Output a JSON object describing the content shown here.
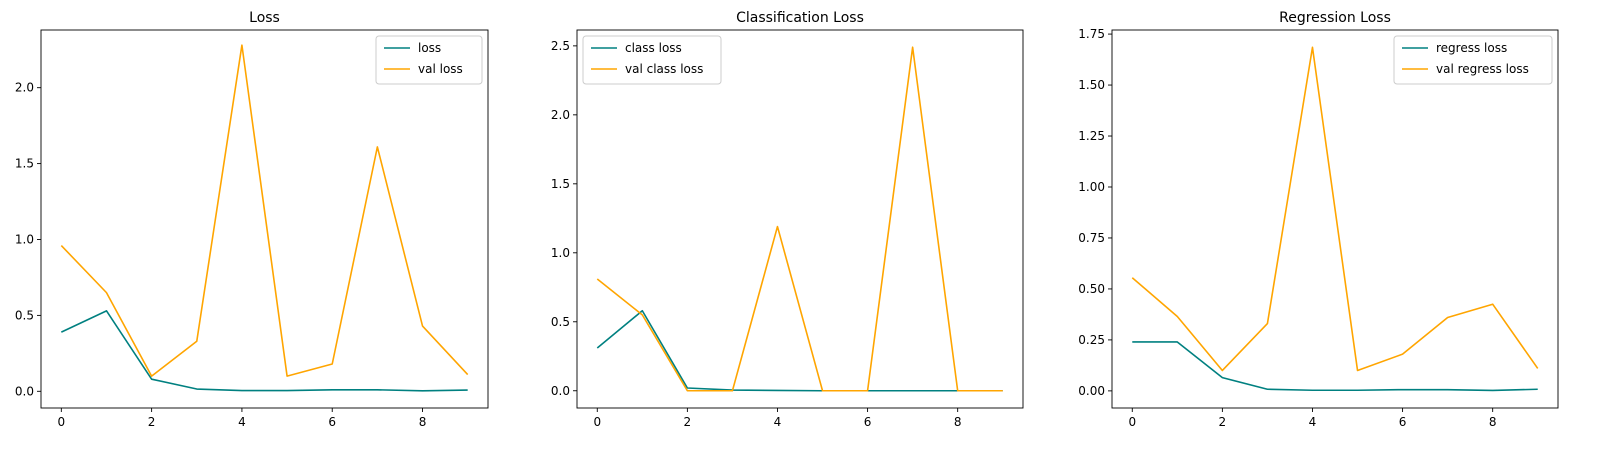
{
  "colors": {
    "train": "#008080",
    "val": "#FFA500"
  },
  "chart_data": [
    {
      "type": "line",
      "title": "Loss",
      "xlabel": "",
      "ylabel": "",
      "grid": false,
      "legend_position": "upper right",
      "x": [
        0,
        1,
        2,
        3,
        4,
        5,
        6,
        7,
        8,
        9
      ],
      "xticks": [
        0,
        2,
        4,
        6,
        8
      ],
      "xtick_labels": [
        "0",
        "2",
        "4",
        "6",
        "8"
      ],
      "yticks": [
        0.0,
        0.5,
        1.0,
        1.5,
        2.0
      ],
      "ytick_labels": [
        "0.0",
        "0.5",
        "1.0",
        "1.5",
        "2.0"
      ],
      "xlim": [
        -0.45,
        9.45
      ],
      "ylim": [
        -0.11,
        2.38
      ],
      "series": [
        {
          "name": "loss",
          "color": "#008080",
          "values": [
            0.39,
            0.53,
            0.08,
            0.015,
            0.005,
            0.005,
            0.01,
            0.01,
            0.003,
            0.008
          ]
        },
        {
          "name": "val loss",
          "color": "#FFA500",
          "values": [
            0.96,
            0.65,
            0.1,
            0.33,
            2.28,
            0.1,
            0.18,
            1.61,
            0.43,
            0.11
          ]
        }
      ]
    },
    {
      "type": "line",
      "title": "Classification Loss",
      "xlabel": "",
      "ylabel": "",
      "grid": false,
      "legend_position": "upper left",
      "x": [
        0,
        1,
        2,
        3,
        4,
        5,
        6,
        7,
        8,
        9
      ],
      "xticks": [
        0,
        2,
        4,
        6,
        8
      ],
      "xtick_labels": [
        "0",
        "2",
        "4",
        "6",
        "8"
      ],
      "yticks": [
        0.0,
        0.5,
        1.0,
        1.5,
        2.0,
        2.5
      ],
      "ytick_labels": [
        "0.0",
        "0.5",
        "1.0",
        "1.5",
        "2.0",
        "2.5"
      ],
      "xlim": [
        -0.45,
        9.45
      ],
      "ylim": [
        -0.125,
        2.615
      ],
      "series": [
        {
          "name": "class loss",
          "color": "#008080",
          "values": [
            0.31,
            0.58,
            0.02,
            0.005,
            0.002,
            0.0,
            0.0,
            0.0,
            0.0,
            0.0
          ]
        },
        {
          "name": "val class loss",
          "color": "#FFA500",
          "values": [
            0.81,
            0.55,
            0.0,
            0.0,
            1.19,
            0.0,
            0.0,
            2.49,
            0.0,
            0.0
          ]
        }
      ]
    },
    {
      "type": "line",
      "title": "Regression Loss",
      "xlabel": "",
      "ylabel": "",
      "grid": false,
      "legend_position": "upper right",
      "x": [
        0,
        1,
        2,
        3,
        4,
        5,
        6,
        7,
        8,
        9
      ],
      "xticks": [
        0,
        2,
        4,
        6,
        8
      ],
      "xtick_labels": [
        "0",
        "2",
        "4",
        "6",
        "8"
      ],
      "yticks": [
        0.0,
        0.25,
        0.5,
        0.75,
        1.0,
        1.25,
        1.5,
        1.75
      ],
      "ytick_labels": [
        "0.00",
        "0.25",
        "0.50",
        "0.75",
        "1.00",
        "1.25",
        "1.50",
        "1.75"
      ],
      "xlim": [
        -0.45,
        9.45
      ],
      "ylim": [
        -0.084,
        1.77
      ],
      "series": [
        {
          "name": "regress loss",
          "color": "#008080",
          "values": [
            0.24,
            0.24,
            0.065,
            0.008,
            0.003,
            0.003,
            0.006,
            0.006,
            0.002,
            0.008
          ]
        },
        {
          "name": "val regress loss",
          "color": "#FFA500",
          "values": [
            0.555,
            0.365,
            0.1,
            0.33,
            1.685,
            0.1,
            0.18,
            0.36,
            0.425,
            0.11
          ]
        }
      ]
    }
  ]
}
